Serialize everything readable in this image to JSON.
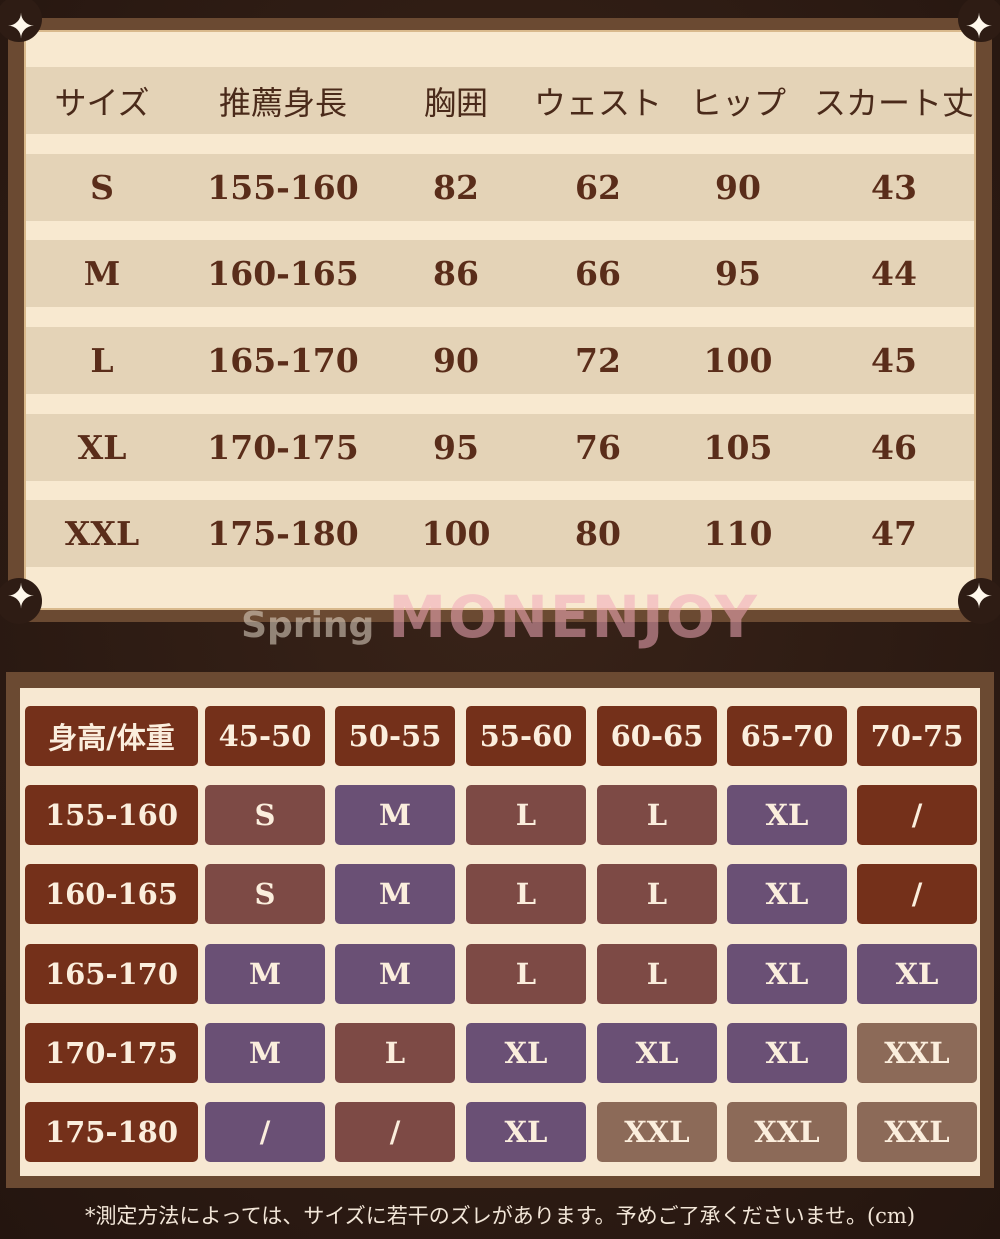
{
  "size_table": {
    "headers": [
      "サイズ",
      "推薦身長",
      "胸囲",
      "ウェスト",
      "ヒップ",
      "スカート丈"
    ],
    "rows": [
      [
        "S",
        "155-160",
        "82",
        "62",
        "90",
        "43"
      ],
      [
        "M",
        "160-165",
        "86",
        "66",
        "95",
        "44"
      ],
      [
        "L",
        "165-170",
        "90",
        "72",
        "100",
        "45"
      ],
      [
        "XL",
        "170-175",
        "95",
        "76",
        "105",
        "46"
      ],
      [
        "XXL",
        "175-180",
        "100",
        "80",
        "110",
        "47"
      ]
    ]
  },
  "fit_grid": {
    "corner_label": "身高/体重",
    "weights": [
      "45-50",
      "50-55",
      "55-60",
      "60-65",
      "65-70",
      "70-75"
    ],
    "rows": [
      {
        "height": "155-160",
        "sizes": [
          "S",
          "M",
          "L",
          "L",
          "XL",
          "/"
        ]
      },
      {
        "height": "160-165",
        "sizes": [
          "S",
          "M",
          "L",
          "L",
          "XL",
          "/"
        ]
      },
      {
        "height": "165-170",
        "sizes": [
          "M",
          "M",
          "L",
          "L",
          "XL",
          "XL"
        ]
      },
      {
        "height": "170-175",
        "sizes": [
          "M",
          "L",
          "XL",
          "XL",
          "XL",
          "XXL"
        ]
      },
      {
        "height": "175-180",
        "sizes": [
          "/",
          "/",
          "XL",
          "XXL",
          "XXL",
          "XXL"
        ]
      }
    ],
    "colors": {
      "header": "#74301a",
      "S": "#7d4a45",
      "M": "#6a5075",
      "L": "#7d4a45",
      "XL": "#6a5075",
      "XXL": "#8c6a58",
      "slash_default": "#74301a"
    }
  },
  "watermark": {
    "line1": "Spring",
    "line2": "MONENJOY"
  },
  "footnote": "*測定方法によっては、サイズに若干のズレがあります。予めご了承くださいませ。(cm)"
}
